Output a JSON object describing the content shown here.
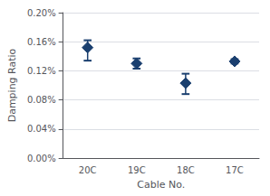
{
  "chart_data": {
    "type": "scatter",
    "categories": [
      "20C",
      "19C",
      "18C",
      "17C"
    ],
    "values": [
      0.00152,
      0.0013,
      0.00103,
      0.00133
    ],
    "upper_err": [
      0.0001,
      7e-05,
      0.00013,
      3e-05
    ],
    "lower_err": [
      0.00018,
      7e-05,
      0.00015,
      3e-05
    ],
    "xlabel": "Cable No.",
    "ylabel": "Damping Ratio",
    "ylim": [
      0.0,
      0.002
    ],
    "yticks": [
      {
        "value": 0.0,
        "label": "0.00%"
      },
      {
        "value": 0.0004,
        "label": "0.04%"
      },
      {
        "value": 0.0008,
        "label": "0.08%"
      },
      {
        "value": 0.0012,
        "label": "0.12%"
      },
      {
        "value": 0.0016,
        "label": "0.16%"
      },
      {
        "value": 0.002,
        "label": "0.20%"
      }
    ],
    "color": "#1a3f6f",
    "marker": "diamond",
    "grid": true
  }
}
